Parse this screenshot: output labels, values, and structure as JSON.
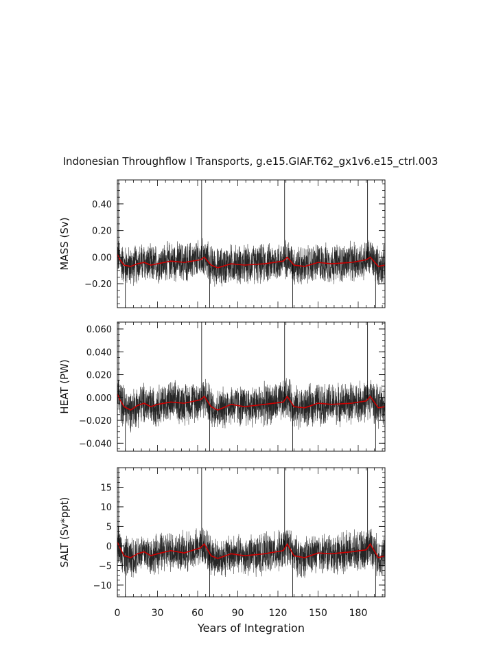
{
  "title": "Indonesian Throughflow I Transports, g.e15.GIAF.T62_gx1v6.e15_ctrl.003",
  "xlabel": "Years of Integration",
  "colors": {
    "raw": "#000000",
    "smooth": "#cc0000",
    "axis": "#111111"
  },
  "chart_data": [
    {
      "type": "line",
      "name": "mass",
      "ylabel": "MASS (Sv)",
      "xlim": [
        0,
        200
      ],
      "ylim": [
        -0.38,
        0.58
      ],
      "yticks": [
        -0.2,
        0.0,
        0.2,
        0.4
      ],
      "ytick_labels": [
        "−0.20",
        "0.00",
        "0.20",
        "0.40"
      ],
      "baseline": -0.05,
      "noise_amp": 0.13,
      "spike_years": [
        1,
        6,
        63,
        69,
        125,
        131,
        187,
        193
      ],
      "spike_values": [
        0.58,
        -0.38,
        0.58,
        -0.38,
        0.58,
        -0.38,
        0.58,
        -0.38
      ],
      "smoothed_years": [
        0,
        2,
        5,
        10,
        15,
        20,
        25,
        30,
        40,
        50,
        62,
        65,
        70,
        75,
        85,
        95,
        110,
        124,
        127,
        132,
        140,
        150,
        160,
        175,
        186,
        189,
        195,
        200
      ],
      "smoothed_values": [
        0.02,
        -0.02,
        -0.06,
        -0.07,
        -0.05,
        -0.04,
        -0.06,
        -0.05,
        -0.03,
        -0.04,
        -0.02,
        0.0,
        -0.06,
        -0.08,
        -0.05,
        -0.06,
        -0.05,
        -0.03,
        0.0,
        -0.06,
        -0.07,
        -0.04,
        -0.05,
        -0.04,
        -0.02,
        0.0,
        -0.07,
        -0.06
      ]
    },
    {
      "type": "line",
      "name": "heat",
      "ylabel": "HEAT (PW)",
      "xlim": [
        0,
        200
      ],
      "ylim": [
        -0.047,
        0.066
      ],
      "yticks": [
        -0.04,
        -0.02,
        0.0,
        0.02,
        0.04,
        0.06
      ],
      "ytick_labels": [
        "−0.040",
        "−0.020",
        "0.000",
        "0.020",
        "0.040",
        "0.060"
      ],
      "baseline": -0.006,
      "noise_amp": 0.016,
      "spike_years": [
        1,
        6,
        63,
        69,
        125,
        131,
        187,
        193
      ],
      "spike_values": [
        0.066,
        -0.047,
        0.066,
        -0.047,
        0.066,
        -0.047,
        0.066,
        -0.047
      ],
      "smoothed_years": [
        0,
        2,
        5,
        10,
        15,
        20,
        25,
        30,
        40,
        50,
        62,
        65,
        70,
        75,
        85,
        95,
        110,
        124,
        127,
        132,
        140,
        150,
        160,
        175,
        186,
        189,
        195,
        200
      ],
      "smoothed_values": [
        0.003,
        -0.002,
        -0.008,
        -0.011,
        -0.007,
        -0.005,
        -0.008,
        -0.006,
        -0.004,
        -0.005,
        -0.002,
        0.001,
        -0.008,
        -0.011,
        -0.006,
        -0.008,
        -0.006,
        -0.004,
        0.001,
        -0.008,
        -0.009,
        -0.005,
        -0.006,
        -0.005,
        -0.003,
        0.001,
        -0.009,
        -0.008
      ]
    },
    {
      "type": "line",
      "name": "salt",
      "ylabel": "SALT (Sv*ppt)",
      "xlim": [
        0,
        200
      ],
      "ylim": [
        -13,
        20
      ],
      "yticks": [
        -10,
        -5,
        0,
        5,
        10,
        15
      ],
      "ytick_labels": [
        "−10",
        "−5",
        "0",
        "5",
        "10",
        "15"
      ],
      "baseline": -1.8,
      "noise_amp": 4.5,
      "spike_years": [
        1,
        6,
        63,
        69,
        125,
        131,
        187,
        193
      ],
      "spike_values": [
        20,
        -13,
        20,
        -13,
        20,
        -13,
        20,
        -13
      ],
      "smoothed_years": [
        0,
        2,
        5,
        10,
        15,
        20,
        25,
        30,
        40,
        50,
        62,
        65,
        70,
        75,
        85,
        95,
        110,
        124,
        127,
        132,
        140,
        150,
        160,
        175,
        186,
        189,
        195,
        200
      ],
      "smoothed_values": [
        1.0,
        -0.5,
        -2.5,
        -3.0,
        -2.0,
        -1.5,
        -2.5,
        -2.0,
        -1.2,
        -1.8,
        -0.5,
        0.5,
        -2.5,
        -3.2,
        -2.0,
        -2.5,
        -2.0,
        -1.2,
        0.5,
        -2.5,
        -3.0,
        -1.8,
        -2.0,
        -1.5,
        -1.0,
        0.5,
        -3.0,
        -2.5
      ]
    }
  ],
  "xticks": [
    0,
    30,
    60,
    90,
    120,
    150,
    180
  ],
  "xtick_labels": [
    "0",
    "30",
    "60",
    "90",
    "120",
    "150",
    "180"
  ]
}
